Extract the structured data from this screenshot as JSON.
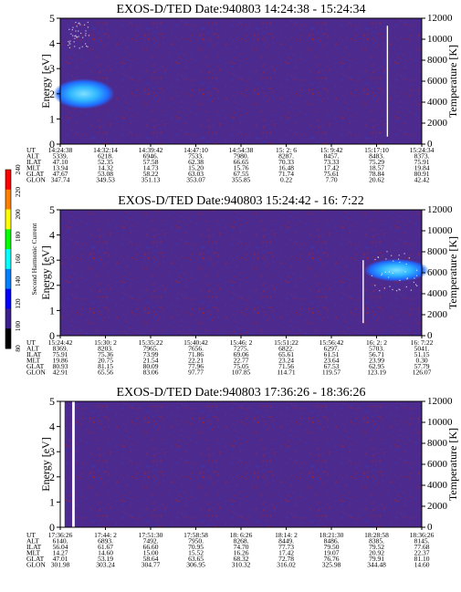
{
  "palette": {
    "background": "#4d2a8e",
    "speckle_red": "#b22222",
    "speckle_blue": "#2a3ec8",
    "hot_band": "#1f6bff",
    "hot_core": "#2fb6ff",
    "hot_peak": "#7fe0ff",
    "line": "#ffffff"
  },
  "colorbar": {
    "title": "Second Harmonic Current",
    "ticks": [
      "240",
      "220",
      "200",
      "180",
      "160",
      "140",
      "120",
      "100",
      "80"
    ],
    "colors": [
      "#ff0000",
      "#ff8000",
      "#ffff00",
      "#00ff00",
      "#00ffff",
      "#0080ff",
      "#0000ff",
      "#3c1f8f",
      "#000000"
    ]
  },
  "chart_data": [
    {
      "type": "heatmap",
      "title": "EXOS-D/TED   Date:940803  14:24:38 - 15:24:34",
      "ylabel": "Energy [eV]",
      "y2label": "Temperature [K]",
      "ylim": [
        0,
        5
      ],
      "y2lim": [
        0,
        12000
      ],
      "yticks": [
        "0",
        "1",
        "2",
        "3",
        "4",
        "5"
      ],
      "y2ticks": [
        "0",
        "2000",
        "4000",
        "6000",
        "8000",
        "10000",
        "12000"
      ],
      "features": {
        "hot_region": {
          "x_start": 0.0,
          "x_end": 0.13,
          "energy_center_eV": 2.0,
          "energy_half_eV": 0.6
        },
        "line": {
          "x": 0.905,
          "energy_from_eV": 0.3,
          "energy_to_eV": 4.7
        },
        "speckles": {
          "x_start": 0.02,
          "x_end": 0.08,
          "energy_from_eV": 3.8,
          "energy_to_eV": 4.9
        }
      },
      "table": {
        "row_labels": [
          "UT",
          "ALT",
          "ILAT",
          "MLT",
          "GLAT",
          "GLON"
        ],
        "columns": [
          [
            "14:24:38",
            "5339.",
            "47.10",
            "13.94",
            "47.67",
            "347.74"
          ],
          [
            "14:32:14",
            "6218.",
            "52.35",
            "14.32",
            "53.08",
            "349.53"
          ],
          [
            "14:39:42",
            "6946.",
            "57.58",
            "14.73",
            "58.22",
            "351.13"
          ],
          [
            "14:47:10",
            "7533.",
            "62.38",
            "15.20",
            "63.03",
            "353.07"
          ],
          [
            "14:54:38",
            "7980.",
            "66.65",
            "15.76",
            "67.55",
            "355.85"
          ],
          [
            "15: 2: 6",
            "8287.",
            "70.33",
            "16.48",
            "71.74",
            "0.22"
          ],
          [
            "15: 9:42",
            "8457.",
            "73.33",
            "17.42",
            "75.61",
            "7.70"
          ],
          [
            "15:17:10",
            "8483.",
            "75.29",
            "18.57",
            "78.84",
            "20.62"
          ],
          [
            "15:24:34",
            "8373.",
            "75.91",
            "19.84",
            "80.91",
            "42.42"
          ]
        ]
      }
    },
    {
      "type": "heatmap",
      "title": "EXOS-D/TED   Date:940803  15:24:42 - 16: 7:22",
      "ylabel": "Energy [eV]",
      "y2label": "Temperature [K]",
      "ylim": [
        0,
        5
      ],
      "y2lim": [
        0,
        12000
      ],
      "yticks": [
        "0",
        "1",
        "2",
        "3",
        "4",
        "5"
      ],
      "y2ticks": [
        "0",
        "2000",
        "4000",
        "6000",
        "8000",
        "10000",
        "12000"
      ],
      "features": {
        "hot_region": {
          "x_start": 0.86,
          "x_end": 1.0,
          "energy_center_eV": 2.6,
          "energy_half_eV": 0.45
        },
        "line": {
          "x": 0.838,
          "energy_from_eV": 0.5,
          "energy_to_eV": 3.0
        },
        "speckles": {
          "x_start": 0.86,
          "x_end": 0.99,
          "energy_from_eV": 1.8,
          "energy_to_eV": 3.4
        }
      },
      "table": {
        "row_labels": [
          "UT",
          "ALT",
          "ILAT",
          "MLT",
          "GLAT",
          "GLON"
        ],
        "columns": [
          [
            "15:24:42",
            "8369.",
            "75.91",
            "19.86",
            "80.93",
            "42.91"
          ],
          [
            "15:30: 2",
            "8203.",
            "75.36",
            "20.75",
            "81.15",
            "65.56"
          ],
          [
            "15:35:22",
            "7965.",
            "73.99",
            "21.54",
            "80.09",
            "83.06"
          ],
          [
            "15:40:42",
            "7656.",
            "71.86",
            "22.21",
            "77.96",
            "97.77"
          ],
          [
            "15:46: 2",
            "7275.",
            "69.06",
            "22.77",
            "75.05",
            "107.85"
          ],
          [
            "15:51:22",
            "6822.",
            "65.61",
            "23.24",
            "71.56",
            "114.71"
          ],
          [
            "15:56:42",
            "6297.",
            "61.51",
            "23.64",
            "67.53",
            "119.57"
          ],
          [
            "16: 2: 2",
            "5703.",
            "56.71",
            "23.99",
            "62.95",
            "123.19"
          ],
          [
            "16: 7:22",
            "5041.",
            "51.15",
            "0.30",
            "57.79",
            "126.07"
          ]
        ]
      }
    },
    {
      "type": "heatmap",
      "title": "EXOS-D/TED   Date:940803  17:36:26 - 18:36:26",
      "ylabel": "Energy [eV]",
      "y2label": "Temperature [K]",
      "ylim": [
        0,
        5
      ],
      "y2lim": [
        0,
        12000
      ],
      "yticks": [
        "0",
        "1",
        "2",
        "3",
        "4",
        "5"
      ],
      "y2ticks": [
        "0",
        "2000",
        "4000",
        "6000",
        "8000",
        "10000",
        "12000"
      ],
      "features": {
        "white_bands": [
          {
            "x_start": 0.0,
            "x_end": 0.012
          },
          {
            "x_start": 0.033,
            "x_end": 0.04
          }
        ]
      },
      "table": {
        "row_labels": [
          "UT",
          "ALT",
          "ILAT",
          "MLT",
          "GLAT",
          "GLON"
        ],
        "columns": [
          [
            "17:36:26",
            "6140.",
            "56.04",
            "14.27",
            "47.01",
            "301.98"
          ],
          [
            "17:44: 2",
            "6893.",
            "61.67",
            "14.60",
            "53.19",
            "303.24"
          ],
          [
            "17:51:30",
            "7492.",
            "66.60",
            "15.00",
            "58.64",
            "304.77"
          ],
          [
            "17:58:58",
            "7950.",
            "70.95",
            "15.52",
            "63.65",
            "306.95"
          ],
          [
            "18: 6:26",
            "8268.",
            "74.70",
            "16.26",
            "68.32",
            "310.32"
          ],
          [
            "18:14: 2",
            "8449.",
            "77.73",
            "17.42",
            "72.78",
            "316.02"
          ],
          [
            "18:21:30",
            "8486.",
            "79.50",
            "19.07",
            "76.76",
            "325.98"
          ],
          [
            "18:28:58",
            "8385.",
            "79.52",
            "20.92",
            "79.91",
            "344.48"
          ],
          [
            "18:36:26",
            "8145.",
            "77.68",
            "22.37",
            "81.10",
            "14.60"
          ]
        ]
      }
    }
  ]
}
